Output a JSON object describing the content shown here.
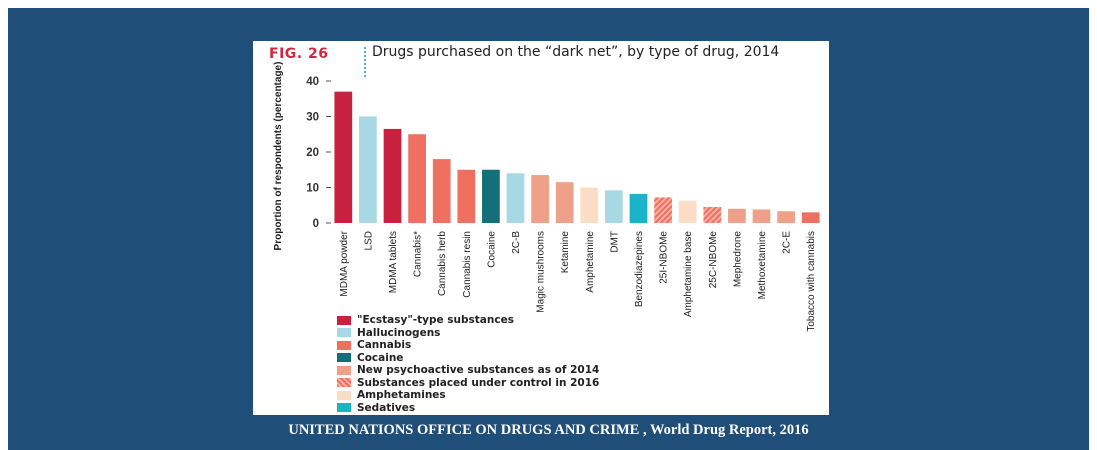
{
  "figure": {
    "label": "FIG. 26",
    "title": "Drugs purchased on the “dark net”, by type of drug, 2014"
  },
  "source": {
    "text": "UNITED NATIONS OFFICE ON DRUGS AND CRIME , World Drug Report, 2016"
  },
  "chart_data": {
    "type": "bar",
    "title": "Drugs purchased on the “dark net”, by type of drug, 2014",
    "xlabel": "",
    "ylabel": "Proportion of respondents (percentage)",
    "ylim": [
      0,
      40
    ],
    "yticks": [
      0,
      10,
      20,
      30,
      40
    ],
    "grid": false,
    "legend_position": "bottom-left",
    "categories": [
      "MDMA powder",
      "LSD",
      "MDMA tablets",
      "Cannabis*",
      "Cannabis herb",
      "Cannabis resin",
      "Cocaine",
      "2C-B",
      "Magic mushrooms",
      "Ketamine",
      "Amphetamine",
      "DMT",
      "Benzodiazepines",
      "25I-NBOMe",
      "Amphetamine base",
      "25C-NBOMe",
      "Mephedrone",
      "Methoxetamine",
      "2C-E",
      "Tobacco with cannabis"
    ],
    "values": [
      37,
      30,
      26.5,
      25,
      18,
      15,
      15,
      14,
      13.5,
      11.5,
      10,
      9.2,
      8.2,
      7.2,
      6.3,
      4.5,
      4,
      3.8,
      3.3,
      3
    ],
    "groups": [
      0,
      1,
      0,
      2,
      2,
      2,
      3,
      1,
      4,
      4,
      6,
      1,
      7,
      5,
      6,
      5,
      4,
      4,
      4,
      2
    ],
    "legend": [
      {
        "name": "\"Ecstasy\"-type substances",
        "color": "#c8203f"
      },
      {
        "name": "Hallucinogens",
        "color": "#a7d8e3"
      },
      {
        "name": "Cannabis",
        "color": "#ef6f61"
      },
      {
        "name": "Cocaine",
        "color": "#136f78"
      },
      {
        "name": "New psychoactive substances as of 2014",
        "color": "#eea188"
      },
      {
        "name": "Substances placed under control in 2016",
        "color": "#ef6f61",
        "pattern": "hatch"
      },
      {
        "name": "Amphetamines",
        "color": "#fbdcc4"
      },
      {
        "name": "Sedatives",
        "color": "#19b4c9"
      }
    ]
  }
}
